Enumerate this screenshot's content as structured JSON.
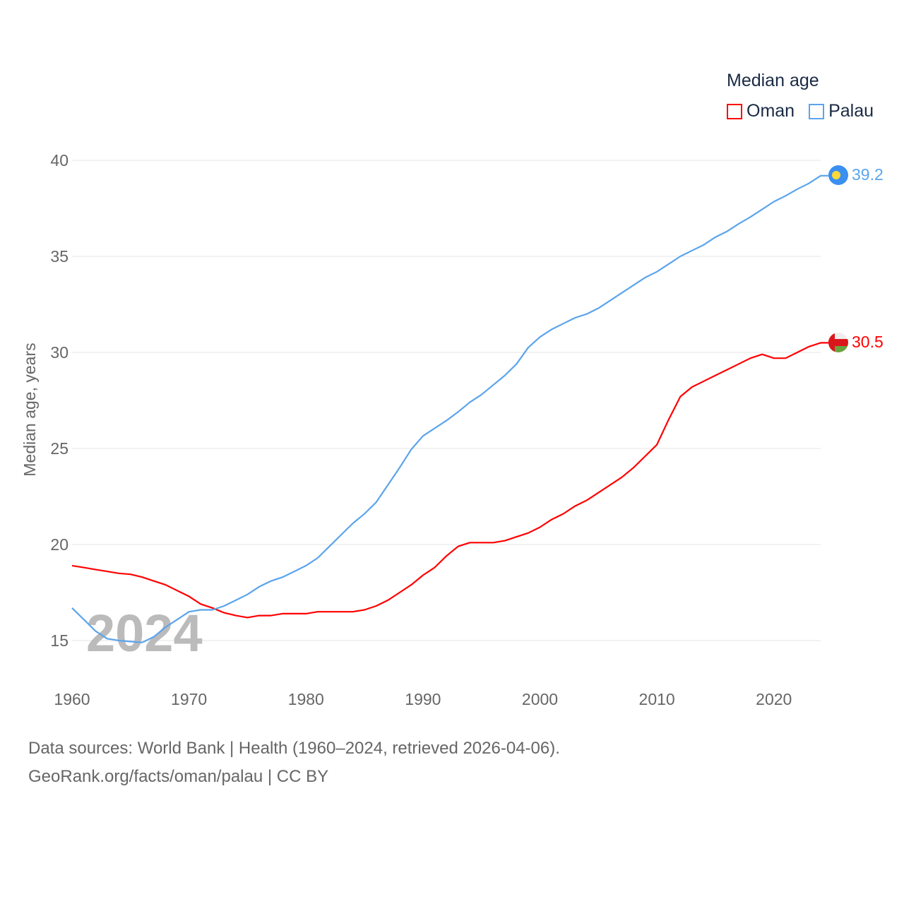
{
  "chart_data": {
    "type": "line",
    "title": "Median age",
    "ylabel": "Median age, years",
    "xlabel": "",
    "xlim": [
      1960,
      2024
    ],
    "ylim": [
      15,
      40
    ],
    "x_ticks": [
      1960,
      1970,
      1980,
      1990,
      2000,
      2010,
      2020
    ],
    "y_ticks": [
      15,
      20,
      25,
      30,
      35,
      40
    ],
    "grid": true,
    "legend_placement": "top-right",
    "year_watermark": "2024",
    "x": [
      1960,
      1961,
      1962,
      1963,
      1964,
      1965,
      1966,
      1967,
      1968,
      1969,
      1970,
      1971,
      1972,
      1973,
      1974,
      1975,
      1976,
      1977,
      1978,
      1979,
      1980,
      1981,
      1982,
      1983,
      1984,
      1985,
      1986,
      1987,
      1988,
      1989,
      1990,
      1991,
      1992,
      1993,
      1994,
      1995,
      1996,
      1997,
      1998,
      1999,
      2000,
      2001,
      2002,
      2003,
      2004,
      2005,
      2006,
      2007,
      2008,
      2009,
      2010,
      2011,
      2012,
      2013,
      2014,
      2015,
      2016,
      2017,
      2018,
      2019,
      2020,
      2021,
      2022,
      2023,
      2024
    ],
    "series": [
      {
        "name": "Oman",
        "color": "#ff0000",
        "end_label": "30.5",
        "values": [
          18.9,
          18.8,
          18.7,
          18.6,
          18.5,
          18.45,
          18.3,
          18.1,
          17.9,
          17.6,
          17.3,
          16.9,
          16.7,
          16.45,
          16.3,
          16.2,
          16.3,
          16.3,
          16.4,
          16.4,
          16.4,
          16.5,
          16.5,
          16.5,
          16.5,
          16.6,
          16.8,
          17.1,
          17.5,
          17.9,
          18.4,
          18.8,
          19.4,
          19.9,
          20.1,
          20.1,
          20.1,
          20.2,
          20.4,
          20.6,
          20.9,
          21.3,
          21.6,
          22.0,
          22.3,
          22.7,
          23.1,
          23.5,
          24.0,
          24.6,
          25.2,
          26.5,
          27.7,
          28.2,
          28.5,
          28.8,
          29.1,
          29.4,
          29.7,
          29.9,
          29.7,
          29.7,
          30.0,
          30.3,
          30.5
        ]
      },
      {
        "name": "Palau",
        "color": "#5ba4ec",
        "end_label": "39.2",
        "values": [
          16.7,
          16.1,
          15.5,
          15.1,
          15.0,
          14.95,
          14.9,
          15.2,
          15.7,
          16.1,
          16.5,
          16.6,
          16.6,
          16.8,
          17.1,
          17.4,
          17.8,
          18.1,
          18.3,
          18.6,
          18.9,
          19.3,
          19.9,
          20.5,
          21.1,
          21.6,
          22.2,
          23.1,
          24.0,
          24.95,
          25.65,
          26.05,
          26.45,
          26.9,
          27.4,
          27.8,
          28.3,
          28.8,
          29.4,
          30.25,
          30.8,
          31.2,
          31.5,
          31.8,
          32.0,
          32.3,
          32.7,
          33.1,
          33.5,
          33.9,
          34.2,
          34.6,
          35.0,
          35.3,
          35.6,
          36.0,
          36.3,
          36.7,
          37.05,
          37.45,
          37.85,
          38.15,
          38.5,
          38.8,
          39.2
        ]
      }
    ]
  },
  "footer": {
    "line1": "Data sources: World Bank | Health (1960–2024, retrieved 2026-04-06).",
    "line2": "GeoRank.org/facts/oman/palau | CC BY"
  }
}
